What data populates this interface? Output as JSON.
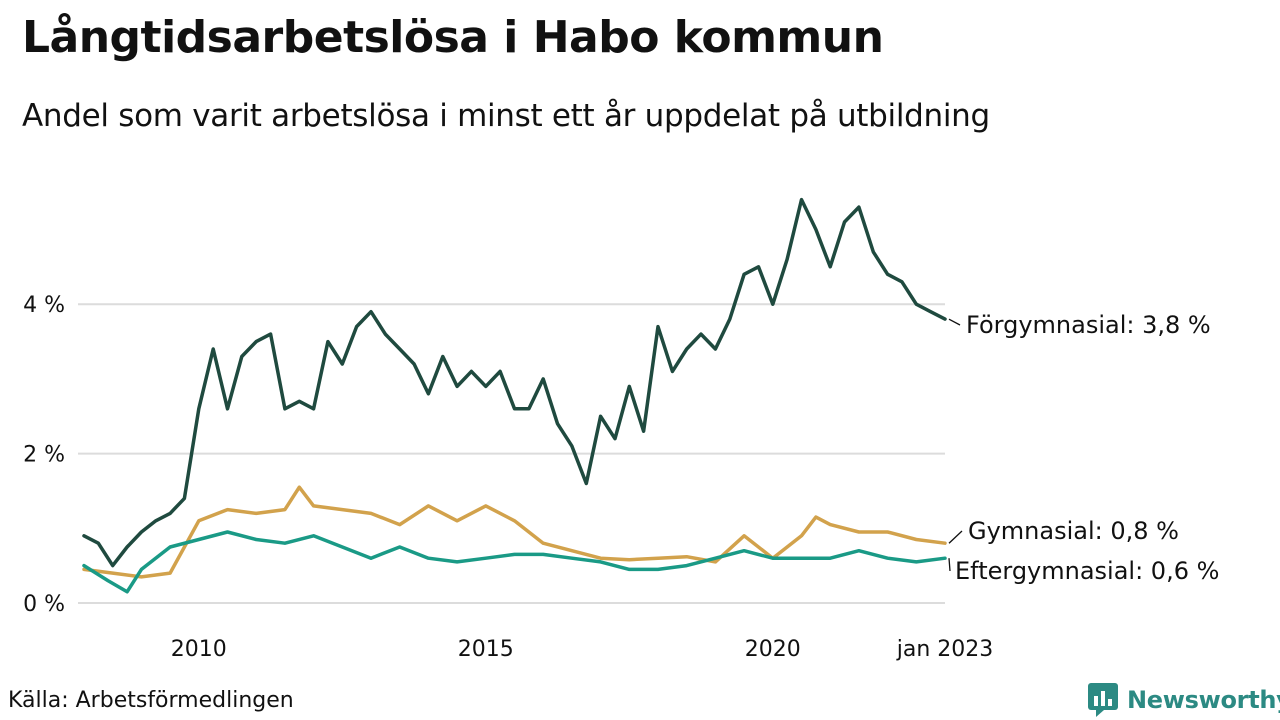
{
  "header": {
    "title": "Långtidsarbetslösa i Habo kommun",
    "subtitle": "Andel som varit arbetslösa i minst ett år uppdelat på utbildning"
  },
  "footer": {
    "source": "Källa: Arbetsförmedlingen",
    "brand": "Newsworthy",
    "brand_icon": "newsworthy-logo-icon",
    "brand_color": "#2c8a83"
  },
  "chart_data": {
    "type": "line",
    "x_unit": "month",
    "x_range": [
      "2008-01",
      "2023-01"
    ],
    "ylim": [
      0,
      5.8
    ],
    "grid": true,
    "y_ticks": [
      {
        "value": 0,
        "label": "0 %"
      },
      {
        "value": 2,
        "label": "2 %"
      },
      {
        "value": 4,
        "label": "4 %"
      }
    ],
    "x_ticks": [
      {
        "x": "2010-01",
        "label": "2010"
      },
      {
        "x": "2015-01",
        "label": "2015"
      },
      {
        "x": "2020-01",
        "label": "2020"
      },
      {
        "x": "2023-01",
        "label": "jan 2023"
      }
    ],
    "series": [
      {
        "name": "Förgymnasial",
        "end_label": "Förgymnasial: 3,8 %",
        "color": "#1f4a3f",
        "points": [
          [
            "2008-01",
            0.9
          ],
          [
            "2008-04",
            0.8
          ],
          [
            "2008-07",
            0.5
          ],
          [
            "2008-10",
            0.75
          ],
          [
            "2009-01",
            0.95
          ],
          [
            "2009-04",
            1.1
          ],
          [
            "2009-07",
            1.2
          ],
          [
            "2009-10",
            1.4
          ],
          [
            "2010-01",
            2.6
          ],
          [
            "2010-04",
            3.4
          ],
          [
            "2010-07",
            2.6
          ],
          [
            "2010-10",
            3.3
          ],
          [
            "2011-01",
            3.5
          ],
          [
            "2011-04",
            3.6
          ],
          [
            "2011-07",
            2.6
          ],
          [
            "2011-10",
            2.7
          ],
          [
            "2012-01",
            2.6
          ],
          [
            "2012-04",
            3.5
          ],
          [
            "2012-07",
            3.2
          ],
          [
            "2012-10",
            3.7
          ],
          [
            "2013-01",
            3.9
          ],
          [
            "2013-04",
            3.6
          ],
          [
            "2013-07",
            3.4
          ],
          [
            "2013-10",
            3.2
          ],
          [
            "2014-01",
            2.8
          ],
          [
            "2014-04",
            3.3
          ],
          [
            "2014-07",
            2.9
          ],
          [
            "2014-10",
            3.1
          ],
          [
            "2015-01",
            2.9
          ],
          [
            "2015-04",
            3.1
          ],
          [
            "2015-07",
            2.6
          ],
          [
            "2015-10",
            2.6
          ],
          [
            "2016-01",
            3.0
          ],
          [
            "2016-04",
            2.4
          ],
          [
            "2016-07",
            2.1
          ],
          [
            "2016-10",
            1.6
          ],
          [
            "2017-01",
            2.5
          ],
          [
            "2017-04",
            2.2
          ],
          [
            "2017-07",
            2.9
          ],
          [
            "2017-10",
            2.3
          ],
          [
            "2018-01",
            3.7
          ],
          [
            "2018-04",
            3.1
          ],
          [
            "2018-07",
            3.4
          ],
          [
            "2018-10",
            3.6
          ],
          [
            "2019-01",
            3.4
          ],
          [
            "2019-04",
            3.8
          ],
          [
            "2019-07",
            4.4
          ],
          [
            "2019-10",
            4.5
          ],
          [
            "2020-01",
            4.0
          ],
          [
            "2020-04",
            4.6
          ],
          [
            "2020-07",
            5.4
          ],
          [
            "2020-10",
            5.0
          ],
          [
            "2021-01",
            4.5
          ],
          [
            "2021-04",
            5.1
          ],
          [
            "2021-07",
            5.3
          ],
          [
            "2021-10",
            4.7
          ],
          [
            "2022-01",
            4.4
          ],
          [
            "2022-04",
            4.3
          ],
          [
            "2022-07",
            4.0
          ],
          [
            "2022-10",
            3.9
          ],
          [
            "2023-01",
            3.8
          ]
        ]
      },
      {
        "name": "Gymnasial",
        "end_label": "Gymnasial: 0,8 %",
        "color": "#d2a24c",
        "points": [
          [
            "2008-01",
            0.45
          ],
          [
            "2008-07",
            0.4
          ],
          [
            "2009-01",
            0.35
          ],
          [
            "2009-07",
            0.4
          ],
          [
            "2010-01",
            1.1
          ],
          [
            "2010-07",
            1.25
          ],
          [
            "2011-01",
            1.2
          ],
          [
            "2011-07",
            1.25
          ],
          [
            "2011-10",
            1.55
          ],
          [
            "2012-01",
            1.3
          ],
          [
            "2012-07",
            1.25
          ],
          [
            "2013-01",
            1.2
          ],
          [
            "2013-07",
            1.05
          ],
          [
            "2014-01",
            1.3
          ],
          [
            "2014-07",
            1.1
          ],
          [
            "2015-01",
            1.3
          ],
          [
            "2015-07",
            1.1
          ],
          [
            "2016-01",
            0.8
          ],
          [
            "2016-07",
            0.7
          ],
          [
            "2017-01",
            0.6
          ],
          [
            "2017-07",
            0.58
          ],
          [
            "2018-01",
            0.6
          ],
          [
            "2018-07",
            0.62
          ],
          [
            "2019-01",
            0.55
          ],
          [
            "2019-07",
            0.9
          ],
          [
            "2020-01",
            0.6
          ],
          [
            "2020-07",
            0.9
          ],
          [
            "2020-10",
            1.15
          ],
          [
            "2021-01",
            1.05
          ],
          [
            "2021-07",
            0.95
          ],
          [
            "2022-01",
            0.95
          ],
          [
            "2022-07",
            0.85
          ],
          [
            "2023-01",
            0.8
          ]
        ]
      },
      {
        "name": "Eftergymnasial",
        "end_label": "Eftergymnasial: 0,6 %",
        "color": "#1a9a86",
        "points": [
          [
            "2008-01",
            0.5
          ],
          [
            "2008-06",
            0.3
          ],
          [
            "2008-10",
            0.15
          ],
          [
            "2009-01",
            0.45
          ],
          [
            "2009-07",
            0.75
          ],
          [
            "2010-01",
            0.85
          ],
          [
            "2010-07",
            0.95
          ],
          [
            "2011-01",
            0.85
          ],
          [
            "2011-07",
            0.8
          ],
          [
            "2012-01",
            0.9
          ],
          [
            "2012-07",
            0.75
          ],
          [
            "2013-01",
            0.6
          ],
          [
            "2013-07",
            0.75
          ],
          [
            "2014-01",
            0.6
          ],
          [
            "2014-07",
            0.55
          ],
          [
            "2015-01",
            0.6
          ],
          [
            "2015-07",
            0.65
          ],
          [
            "2016-01",
            0.65
          ],
          [
            "2016-07",
            0.6
          ],
          [
            "2017-01",
            0.55
          ],
          [
            "2017-07",
            0.45
          ],
          [
            "2018-01",
            0.45
          ],
          [
            "2018-07",
            0.5
          ],
          [
            "2019-01",
            0.6
          ],
          [
            "2019-07",
            0.7
          ],
          [
            "2020-01",
            0.6
          ],
          [
            "2020-07",
            0.6
          ],
          [
            "2021-01",
            0.6
          ],
          [
            "2021-07",
            0.7
          ],
          [
            "2022-01",
            0.6
          ],
          [
            "2022-07",
            0.55
          ],
          [
            "2023-01",
            0.6
          ]
        ]
      }
    ]
  }
}
